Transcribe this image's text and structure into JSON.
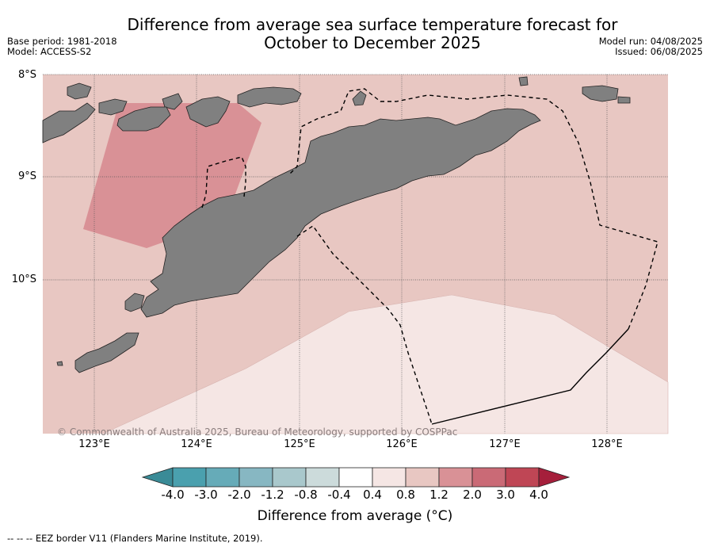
{
  "title_line1": "Difference from average sea surface temperature forecast for",
  "title_line2": "October to December 2025",
  "base_period": "Base period: 1981-2018",
  "model": "Model: ACCESS-S2",
  "model_run": "Model run: 04/08/2025",
  "issued": "Issued: 06/08/2025",
  "lat_labels": [
    "8°S",
    "9°S",
    "10°S"
  ],
  "lon_labels": [
    "123°E",
    "124°E",
    "125°E",
    "126°E",
    "127°E",
    "128°E"
  ],
  "copyright": "© Commonwealth of Australia 2025, Bureau of Meteorology, supported by COSPPac",
  "colorbar": {
    "ticks": [
      "-4.0",
      "-3.0",
      "-2.0",
      "-1.2",
      "-0.8",
      "-0.4",
      "0.4",
      "0.8",
      "1.2",
      "2.0",
      "3.0",
      "4.0"
    ],
    "colors": [
      "#3a8b97",
      "#4aa0ae",
      "#66abb8",
      "#87b7c2",
      "#a9c8cc",
      "#ccdbdb",
      "#ffffff",
      "#f5e6e4",
      "#e8c7c2",
      "#d99196",
      "#ca6a76",
      "#bf4655",
      "#a51f3b"
    ],
    "label": "Difference from average (°C)"
  },
  "footnote": "--  --  -- EEZ border V11 (Flanders Marine Institute, 2019).",
  "colors": {
    "sea_main": "#e8c7c2",
    "sea_light": "#f5e6e4",
    "sea_warm": "#d99196",
    "land": "#808080"
  }
}
